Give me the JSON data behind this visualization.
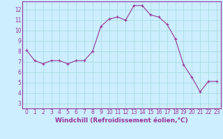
{
  "x": [
    0,
    1,
    2,
    3,
    4,
    5,
    6,
    7,
    8,
    9,
    10,
    11,
    12,
    13,
    14,
    15,
    16,
    17,
    18,
    19,
    20,
    21,
    22,
    23
  ],
  "y": [
    8.1,
    7.1,
    6.8,
    7.1,
    7.1,
    6.8,
    7.1,
    7.1,
    8.0,
    10.4,
    11.1,
    11.3,
    11.0,
    12.4,
    12.4,
    11.5,
    11.3,
    10.6,
    9.2,
    6.7,
    5.5,
    4.1,
    5.1,
    5.1
  ],
  "line_color": "#993399",
  "marker": "+",
  "marker_color": "#993399",
  "bg_color": "#cceeff",
  "grid_color": "#aadddd",
  "axis_label_color": "#993399",
  "xlabel": "Windchill (Refroidissement éolien,°C)",
  "xlim": [
    -0.5,
    23.5
  ],
  "ylim": [
    2.5,
    12.8
  ],
  "yticks": [
    3,
    4,
    5,
    6,
    7,
    8,
    9,
    10,
    11,
    12
  ],
  "xticks": [
    0,
    1,
    2,
    3,
    4,
    5,
    6,
    7,
    8,
    9,
    10,
    11,
    12,
    13,
    14,
    15,
    16,
    17,
    18,
    19,
    20,
    21,
    22,
    23
  ],
  "spine_color": "#993399",
  "tick_color": "#993399",
  "label_fontsize": 6.5,
  "tick_fontsize": 5.5
}
